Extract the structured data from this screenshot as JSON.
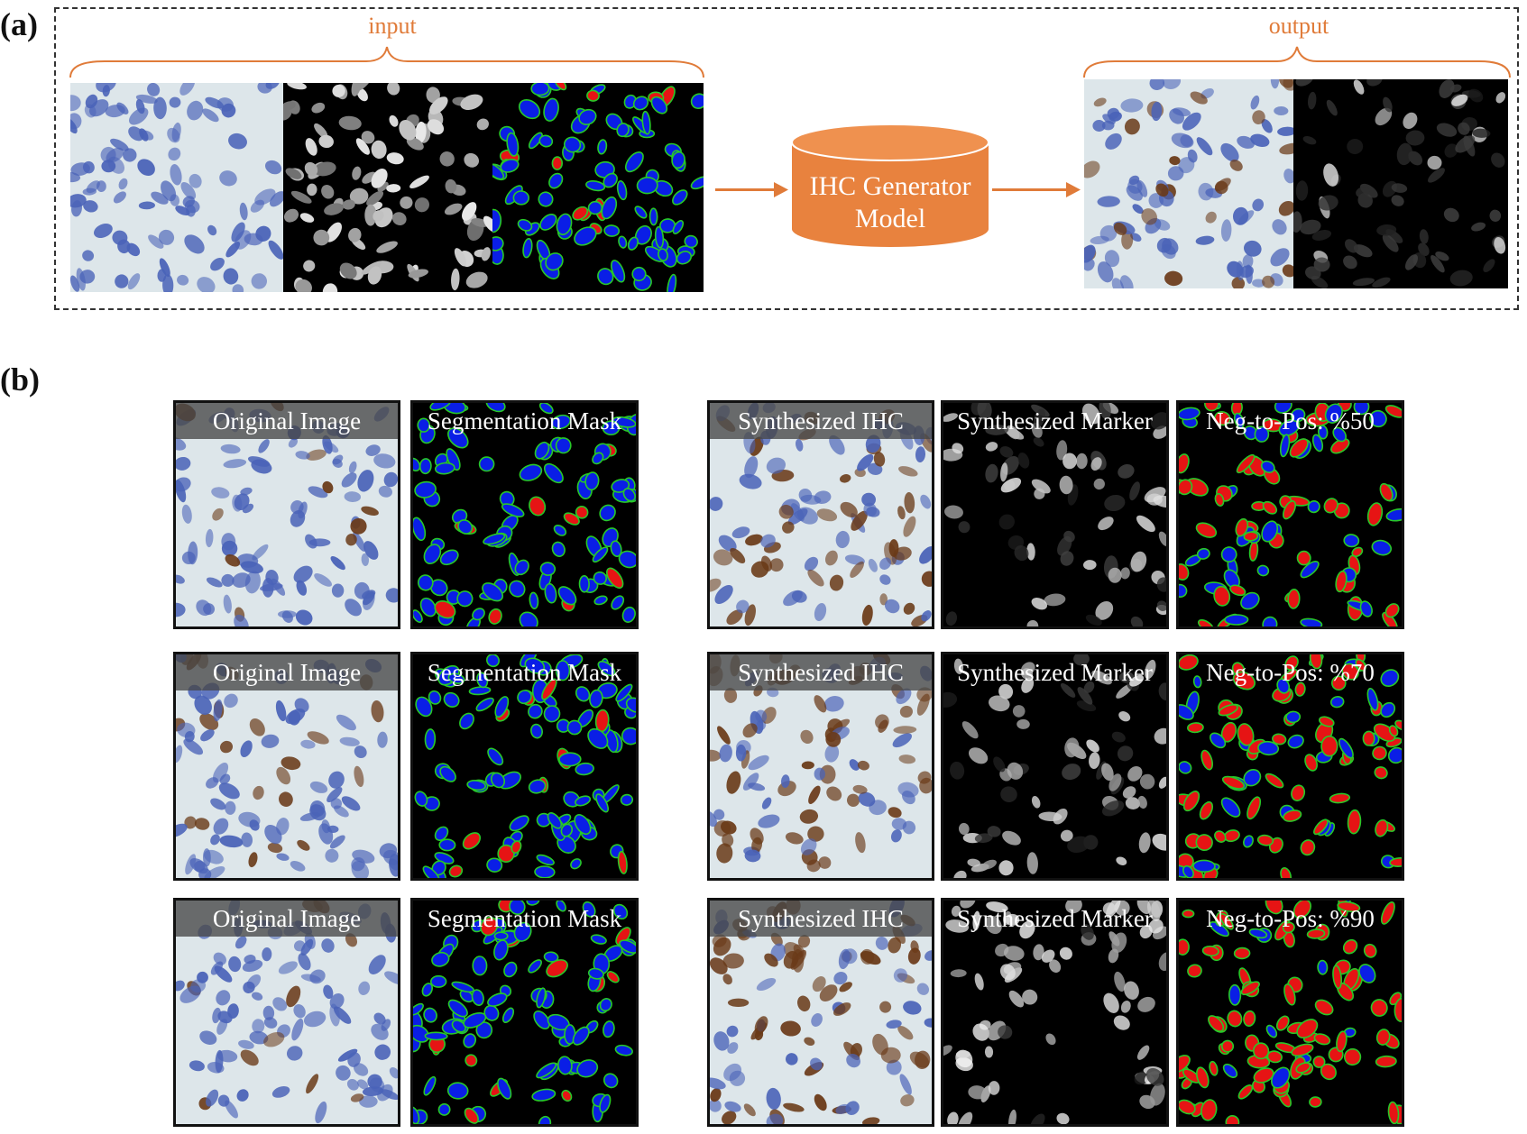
{
  "panel_a": {
    "label": "(a)",
    "input_label": "input",
    "output_label": "output",
    "model_line1": "IHC Generator",
    "model_line2": "Model",
    "input_tiles": [
      {
        "name": "input-ihc-image",
        "kind": "ihc"
      },
      {
        "name": "input-nuclei-image",
        "kind": "gray"
      },
      {
        "name": "input-segmentation-mask",
        "kind": "mask"
      }
    ],
    "output_tiles": [
      {
        "name": "output-ihc-image",
        "kind": "ihc-brown"
      },
      {
        "name": "output-marker-image",
        "kind": "dark"
      }
    ]
  },
  "panel_b": {
    "label": "(b)",
    "rows": [
      {
        "titles": [
          "Original Image",
          "Segmentation Mask",
          "Synthesized IHC",
          "Synthesized Marker",
          "Neg-to-Pos: %50"
        ]
      },
      {
        "titles": [
          "Original Image",
          "Segmentation Mask",
          "Synthesized IHC",
          "Synthesized Marker",
          "Neg-to-Pos: %70"
        ]
      },
      {
        "titles": [
          "Original Image",
          "Segmentation Mask",
          "Synthesized IHC",
          "Synthesized Marker",
          "Neg-to-Pos: %90"
        ]
      }
    ]
  },
  "colors": {
    "accent_orange": "#e07b39",
    "mask_negative": "#0a1ee6",
    "mask_positive": "#e61414",
    "mask_outline": "#28c828",
    "ihc_background": "#dde6ea",
    "hematoxylin_blue": "#4a63b8",
    "dab_brown": "#6a3a18"
  }
}
